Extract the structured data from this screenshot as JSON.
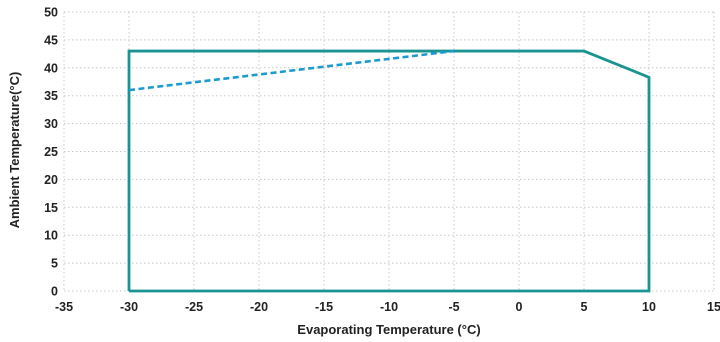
{
  "chart_data": {
    "type": "line",
    "title": "",
    "xlabel": "Evaporating Temperature (°C)",
    "ylabel": "Ambient Temperature(°C)",
    "xlim": [
      -35,
      15
    ],
    "ylim": [
      0,
      50
    ],
    "x_ticks": [
      -35,
      -30,
      -25,
      -20,
      -15,
      -10,
      -5,
      0,
      5,
      10,
      15
    ],
    "y_ticks": [
      0,
      5,
      10,
      15,
      20,
      25,
      30,
      35,
      40,
      45,
      50
    ],
    "grid": true,
    "legend": "none",
    "series": [
      {
        "style": "solid",
        "color": "#1a9492",
        "closed": true,
        "x": [
          -30,
          -30,
          5,
          10,
          10,
          -30
        ],
        "y": [
          0,
          43,
          43,
          38.3,
          0,
          0
        ]
      },
      {
        "style": "dashed",
        "color": "#1b9bd0",
        "x": [
          -30,
          -5
        ],
        "y": [
          36,
          43
        ]
      }
    ]
  }
}
